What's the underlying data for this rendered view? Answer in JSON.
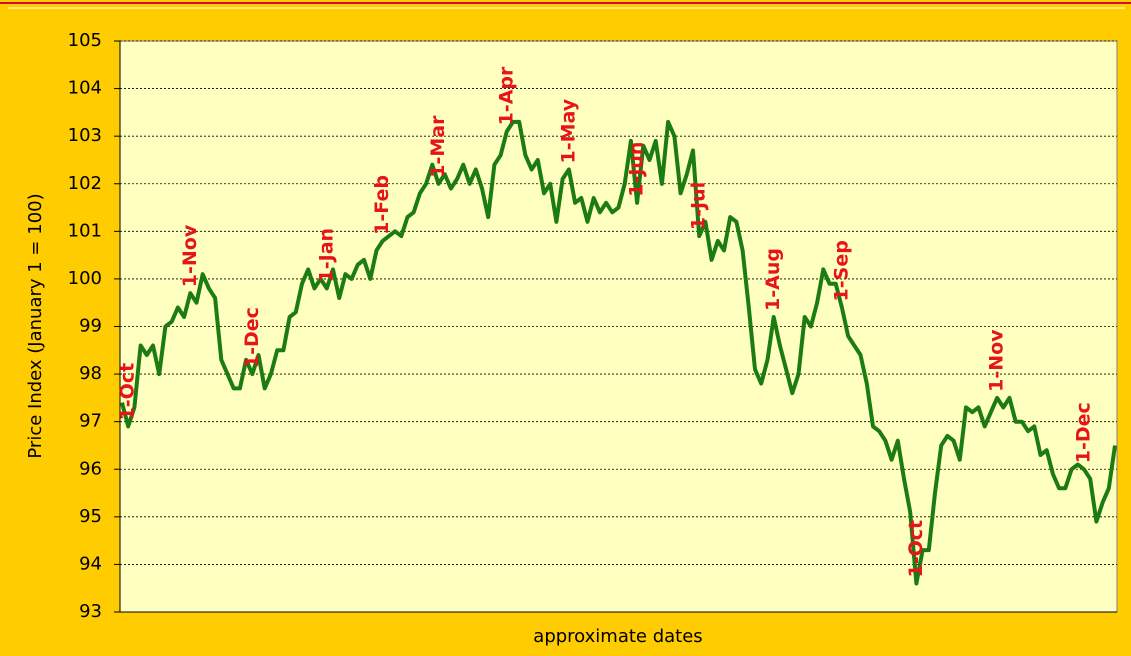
{
  "chart_data": {
    "type": "line",
    "ylabel": "Price Index (January 1 = 100)",
    "xlabel": "approximate dates",
    "ylim": [
      93,
      105
    ],
    "yticks": [
      93,
      94,
      95,
      96,
      97,
      98,
      99,
      100,
      101,
      102,
      103,
      104,
      105
    ],
    "grid": true,
    "color": "#1c7c12",
    "label_color": "#e8141c",
    "categories": [
      null,
      "1-Oct",
      null,
      null,
      null,
      null,
      null,
      null,
      null,
      null,
      null,
      "1-Nov",
      null,
      null,
      null,
      null,
      null,
      null,
      null,
      null,
      null,
      "1-Dec",
      null,
      null,
      null,
      null,
      null,
      null,
      null,
      null,
      null,
      null,
      null,
      "1-Jan",
      null,
      null,
      null,
      null,
      null,
      null,
      null,
      null,
      "1-Feb",
      null,
      null,
      null,
      null,
      null,
      null,
      null,
      null,
      "1-Mar",
      null,
      null,
      null,
      null,
      null,
      null,
      null,
      null,
      null,
      null,
      "1-Apr",
      null,
      null,
      null,
      null,
      null,
      null,
      null,
      null,
      null,
      "1-May",
      null,
      null,
      null,
      null,
      null,
      null,
      null,
      null,
      null,
      null,
      "1-Jun",
      null,
      null,
      null,
      null,
      null,
      null,
      null,
      null,
      null,
      "1-Jul",
      null,
      null,
      null,
      null,
      null,
      null,
      null,
      null,
      null,
      null,
      null,
      "1-Aug",
      null,
      null,
      null,
      null,
      null,
      null,
      null,
      null,
      null,
      null,
      "1-Sep",
      null,
      null,
      null,
      null,
      null,
      null,
      null,
      null,
      null,
      null,
      null,
      "1-Oct",
      null,
      null,
      null,
      null,
      null,
      null,
      null,
      null,
      null,
      null,
      null,
      null,
      "1-Nov",
      null,
      null,
      null,
      null,
      null,
      null,
      null,
      null,
      null,
      null,
      null,
      null,
      null,
      "1-Dec",
      null,
      null,
      null,
      null,
      null
    ],
    "values": [
      97.4,
      96.9,
      97.3,
      98.6,
      98.4,
      98.6,
      98.0,
      99.0,
      99.1,
      99.4,
      99.2,
      99.7,
      99.5,
      100.1,
      99.8,
      99.6,
      98.3,
      98.0,
      97.7,
      97.7,
      98.3,
      98.0,
      98.4,
      97.7,
      98.0,
      98.5,
      98.5,
      99.2,
      99.3,
      99.9,
      100.2,
      99.8,
      100.0,
      99.8,
      100.2,
      99.6,
      100.1,
      100.0,
      100.3,
      100.4,
      100.0,
      100.6,
      100.8,
      100.9,
      101.0,
      100.9,
      101.3,
      101.4,
      101.8,
      102.0,
      102.4,
      102.0,
      102.2,
      101.9,
      102.1,
      102.4,
      102.0,
      102.3,
      101.9,
      101.3,
      102.4,
      102.6,
      103.1,
      103.3,
      103.3,
      102.6,
      102.3,
      102.5,
      101.8,
      102.0,
      101.2,
      102.1,
      102.3,
      101.6,
      101.7,
      101.2,
      101.7,
      101.4,
      101.6,
      101.4,
      101.5,
      102.0,
      102.9,
      101.6,
      102.8,
      102.5,
      102.9,
      102.0,
      103.3,
      103.0,
      101.8,
      102.2,
      102.7,
      100.9,
      101.2,
      100.4,
      100.8,
      100.6,
      101.3,
      101.2,
      100.6,
      99.4,
      98.1,
      97.8,
      98.3,
      99.2,
      98.6,
      98.1,
      97.6,
      98.0,
      99.2,
      99.0,
      99.5,
      100.2,
      99.9,
      99.9,
      99.4,
      98.8,
      98.6,
      98.4,
      97.8,
      96.9,
      96.8,
      96.6,
      96.2,
      96.6,
      95.8,
      95.1,
      93.6,
      94.3,
      94.3,
      95.5,
      96.5,
      96.7,
      96.6,
      96.2,
      97.3,
      97.2,
      97.3,
      96.9,
      97.2,
      97.5,
      97.3,
      97.5,
      97.0,
      97.0,
      96.8,
      96.9,
      96.3,
      96.4,
      95.9,
      95.6,
      95.6,
      96.0,
      96.1,
      96.0,
      95.8,
      94.9,
      95.3,
      95.6,
      96.5
    ]
  }
}
